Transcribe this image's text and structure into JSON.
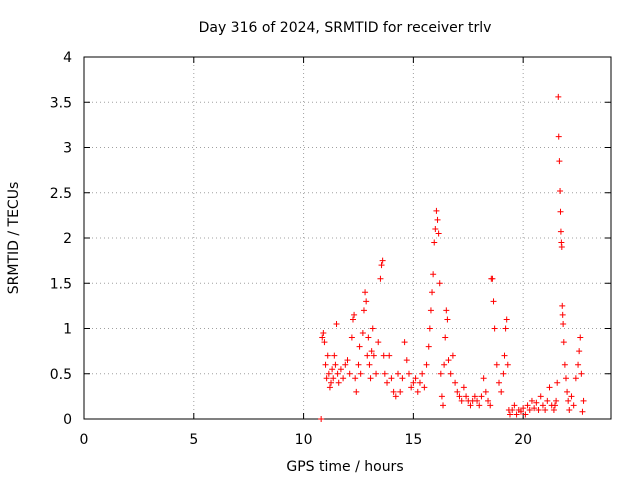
{
  "chart_data": {
    "type": "scatter",
    "title": "Day 316 of 2024, SRMTID for receiver trlv",
    "xlabel": "GPS time / hours",
    "ylabel": "SRMTID / TECUs",
    "xlim": [
      0,
      24
    ],
    "ylim": [
      0,
      4
    ],
    "xticks": [
      0,
      5,
      10,
      15,
      20
    ],
    "yticks": [
      0,
      0.5,
      1,
      1.5,
      2,
      2.5,
      3,
      3.5,
      4
    ],
    "xtick_labels": [
      "0",
      "5",
      "10",
      "15",
      "20"
    ],
    "ytick_labels": [
      "0",
      "0.5",
      "1",
      "1.5",
      "2",
      "2.5",
      "3",
      "3.5",
      "4"
    ],
    "grid": true,
    "marker": "+",
    "color": "#ff0000",
    "series": [
      {
        "name": "SRMTID",
        "points": [
          [
            10.8,
            0.0
          ],
          [
            10.85,
            0.9
          ],
          [
            10.9,
            0.95
          ],
          [
            10.95,
            0.85
          ],
          [
            11.0,
            0.6
          ],
          [
            11.05,
            0.45
          ],
          [
            11.1,
            0.7
          ],
          [
            11.15,
            0.5
          ],
          [
            11.2,
            0.35
          ],
          [
            11.25,
            0.4
          ],
          [
            11.3,
            0.55
          ],
          [
            11.35,
            0.45
          ],
          [
            11.4,
            0.7
          ],
          [
            11.45,
            0.6
          ],
          [
            11.5,
            1.05
          ],
          [
            11.55,
            0.5
          ],
          [
            11.6,
            0.4
          ],
          [
            11.7,
            0.55
          ],
          [
            11.8,
            0.45
          ],
          [
            11.9,
            0.6
          ],
          [
            12.0,
            0.65
          ],
          [
            12.1,
            0.5
          ],
          [
            12.2,
            0.9
          ],
          [
            12.25,
            1.1
          ],
          [
            12.3,
            1.15
          ],
          [
            12.35,
            0.45
          ],
          [
            12.4,
            0.3
          ],
          [
            12.5,
            0.6
          ],
          [
            12.55,
            0.8
          ],
          [
            12.6,
            0.5
          ],
          [
            12.7,
            0.95
          ],
          [
            12.75,
            1.2
          ],
          [
            12.8,
            1.4
          ],
          [
            12.85,
            1.3
          ],
          [
            12.9,
            0.7
          ],
          [
            12.95,
            0.9
          ],
          [
            13.0,
            0.6
          ],
          [
            13.05,
            0.45
          ],
          [
            13.1,
            0.75
          ],
          [
            13.15,
            1.0
          ],
          [
            13.2,
            0.7
          ],
          [
            13.3,
            0.5
          ],
          [
            13.4,
            0.85
          ],
          [
            13.5,
            1.55
          ],
          [
            13.55,
            1.7
          ],
          [
            13.6,
            1.75
          ],
          [
            13.65,
            0.7
          ],
          [
            13.7,
            0.5
          ],
          [
            13.8,
            0.4
          ],
          [
            13.9,
            0.7
          ],
          [
            14.0,
            0.45
          ],
          [
            14.1,
            0.3
          ],
          [
            14.2,
            0.25
          ],
          [
            14.3,
            0.5
          ],
          [
            14.4,
            0.3
          ],
          [
            14.5,
            0.45
          ],
          [
            14.6,
            0.85
          ],
          [
            14.7,
            0.65
          ],
          [
            14.8,
            0.5
          ],
          [
            14.9,
            0.35
          ],
          [
            15.0,
            0.4
          ],
          [
            15.1,
            0.45
          ],
          [
            15.2,
            0.3
          ],
          [
            15.3,
            0.4
          ],
          [
            15.4,
            0.5
          ],
          [
            15.5,
            0.35
          ],
          [
            15.6,
            0.6
          ],
          [
            15.7,
            0.8
          ],
          [
            15.75,
            1.0
          ],
          [
            15.8,
            1.2
          ],
          [
            15.85,
            1.4
          ],
          [
            15.9,
            1.6
          ],
          [
            15.95,
            1.95
          ],
          [
            16.0,
            2.1
          ],
          [
            16.05,
            2.3
          ],
          [
            16.1,
            2.2
          ],
          [
            16.15,
            2.05
          ],
          [
            16.2,
            1.5
          ],
          [
            16.25,
            0.5
          ],
          [
            16.3,
            0.25
          ],
          [
            16.35,
            0.15
          ],
          [
            16.4,
            0.6
          ],
          [
            16.45,
            0.9
          ],
          [
            16.5,
            1.2
          ],
          [
            16.55,
            1.1
          ],
          [
            16.6,
            0.65
          ],
          [
            16.7,
            0.5
          ],
          [
            16.8,
            0.7
          ],
          [
            16.9,
            0.4
          ],
          [
            17.0,
            0.3
          ],
          [
            17.1,
            0.25
          ],
          [
            17.2,
            0.2
          ],
          [
            17.3,
            0.35
          ],
          [
            17.4,
            0.25
          ],
          [
            17.5,
            0.2
          ],
          [
            17.6,
            0.15
          ],
          [
            17.7,
            0.2
          ],
          [
            17.8,
            0.25
          ],
          [
            17.9,
            0.2
          ],
          [
            18.0,
            0.15
          ],
          [
            18.1,
            0.25
          ],
          [
            18.2,
            0.45
          ],
          [
            18.3,
            0.3
          ],
          [
            18.4,
            0.2
          ],
          [
            18.5,
            0.15
          ],
          [
            18.55,
            1.55
          ],
          [
            18.6,
            1.55
          ],
          [
            18.65,
            1.3
          ],
          [
            18.7,
            1.0
          ],
          [
            18.8,
            0.6
          ],
          [
            18.9,
            0.4
          ],
          [
            19.0,
            0.3
          ],
          [
            19.1,
            0.5
          ],
          [
            19.15,
            0.7
          ],
          [
            19.2,
            1.0
          ],
          [
            19.25,
            1.1
          ],
          [
            19.3,
            0.6
          ],
          [
            19.35,
            0.1
          ],
          [
            19.4,
            0.05
          ],
          [
            19.5,
            0.1
          ],
          [
            19.6,
            0.15
          ],
          [
            19.7,
            0.05
          ],
          [
            19.8,
            0.1
          ],
          [
            19.9,
            0.08
          ],
          [
            20.0,
            0.12
          ],
          [
            20.1,
            0.05
          ],
          [
            20.2,
            0.15
          ],
          [
            20.3,
            0.1
          ],
          [
            20.4,
            0.2
          ],
          [
            20.5,
            0.12
          ],
          [
            20.6,
            0.18
          ],
          [
            20.7,
            0.1
          ],
          [
            20.8,
            0.25
          ],
          [
            20.9,
            0.15
          ],
          [
            21.0,
            0.1
          ],
          [
            21.1,
            0.2
          ],
          [
            21.2,
            0.35
          ],
          [
            21.3,
            0.15
          ],
          [
            21.4,
            0.1
          ],
          [
            21.45,
            0.15
          ],
          [
            21.5,
            0.2
          ],
          [
            21.55,
            0.4
          ],
          [
            21.6,
            3.56
          ],
          [
            21.62,
            3.12
          ],
          [
            21.65,
            2.85
          ],
          [
            21.68,
            2.52
          ],
          [
            21.7,
            2.29
          ],
          [
            21.72,
            2.07
          ],
          [
            21.74,
            1.95
          ],
          [
            21.76,
            1.9
          ],
          [
            21.78,
            1.25
          ],
          [
            21.8,
            1.15
          ],
          [
            21.82,
            1.05
          ],
          [
            21.85,
            0.85
          ],
          [
            21.9,
            0.6
          ],
          [
            21.95,
            0.45
          ],
          [
            22.0,
            0.3
          ],
          [
            22.05,
            0.2
          ],
          [
            22.1,
            0.1
          ],
          [
            22.2,
            0.25
          ],
          [
            22.3,
            0.15
          ],
          [
            22.4,
            0.45
          ],
          [
            22.5,
            0.6
          ],
          [
            22.55,
            0.75
          ],
          [
            22.6,
            0.9
          ],
          [
            22.65,
            0.5
          ],
          [
            22.7,
            0.08
          ],
          [
            22.75,
            0.2
          ]
        ]
      }
    ]
  }
}
